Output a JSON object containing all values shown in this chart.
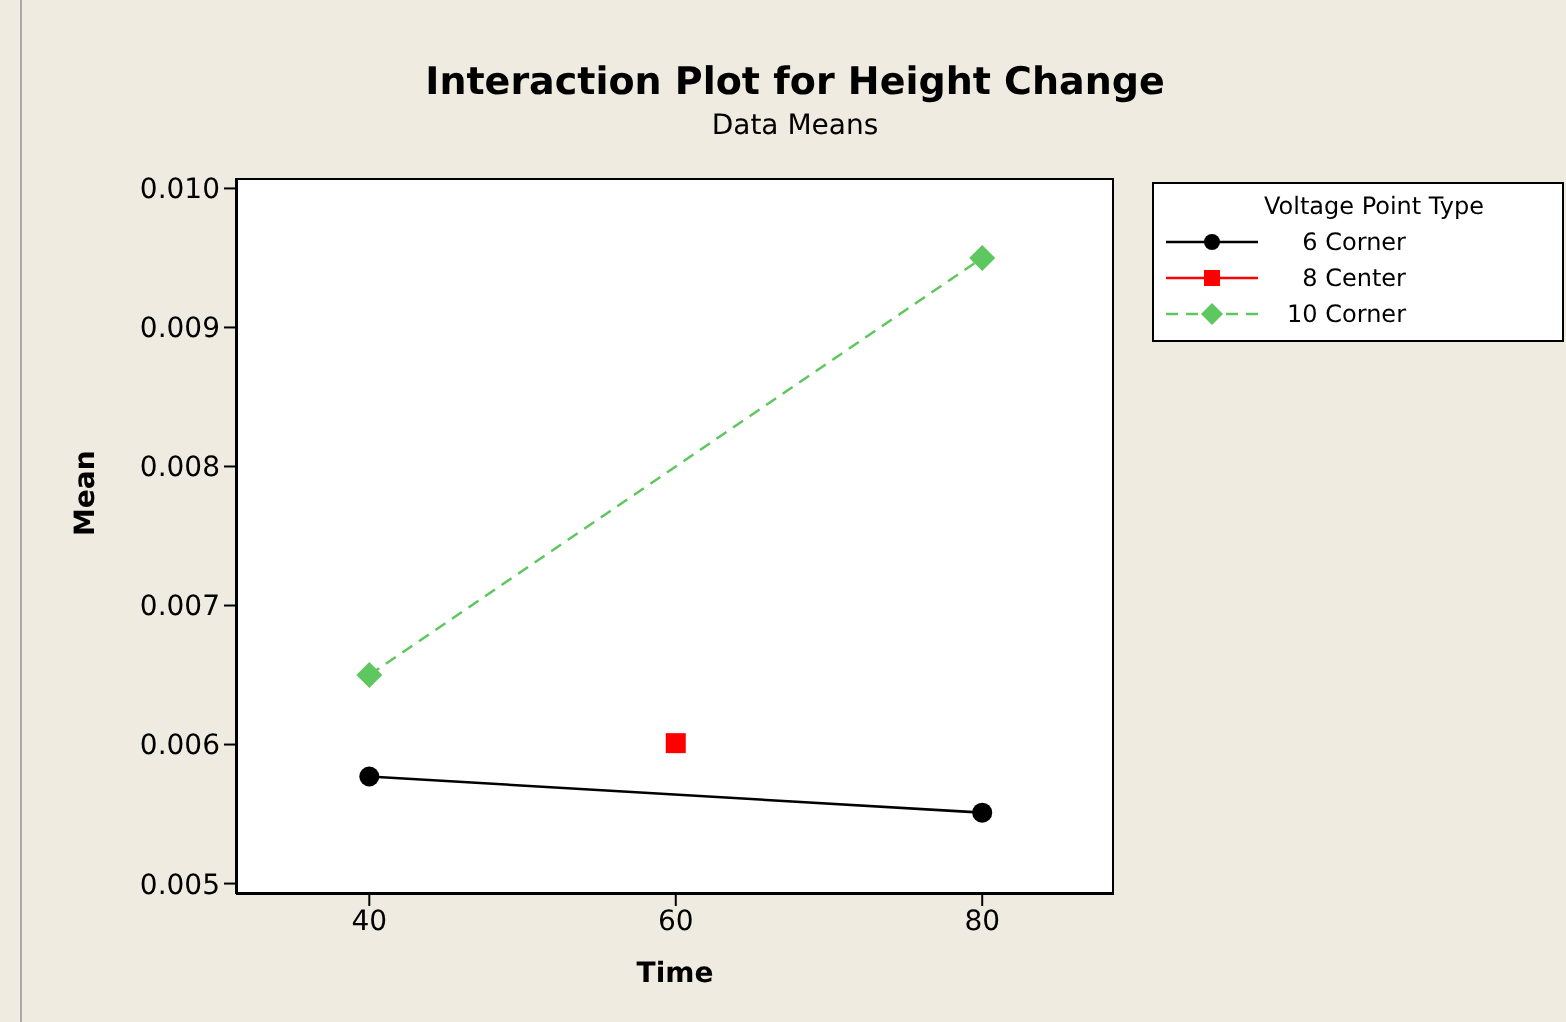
{
  "chart_data": {
    "type": "line",
    "title": "Interaction Plot for Height Change",
    "subtitle": "Data Means",
    "xlabel": "Time",
    "ylabel": "Mean",
    "legend_title": "Voltage  Point Type",
    "legend": "right",
    "grid": false,
    "xlim": [
      31.3,
      88.6
    ],
    "xticks": [
      40,
      60,
      80
    ],
    "ylim": [
      0.004925,
      0.010075
    ],
    "yticks": [
      0.005,
      0.006,
      0.007,
      0.008,
      0.009,
      {
        "value": 0.01,
        "label": "0.010"
      }
    ],
    "series": [
      {
        "name": "6 Corner",
        "color": "#000000",
        "marker": "circle",
        "line_style": "solid",
        "x": [
          40,
          80
        ],
        "values": [
          0.00577,
          0.00551
        ]
      },
      {
        "name": "8 Center",
        "color": "#ff0000",
        "marker": "square",
        "line_style": "solid",
        "x": [
          60
        ],
        "values": [
          0.00601
        ]
      },
      {
        "name": "10 Corner",
        "color": "#5fc75f",
        "marker": "diamond",
        "line_style": "dashed",
        "x": [
          40,
          80
        ],
        "values": [
          0.0065,
          0.0095
        ]
      }
    ]
  }
}
